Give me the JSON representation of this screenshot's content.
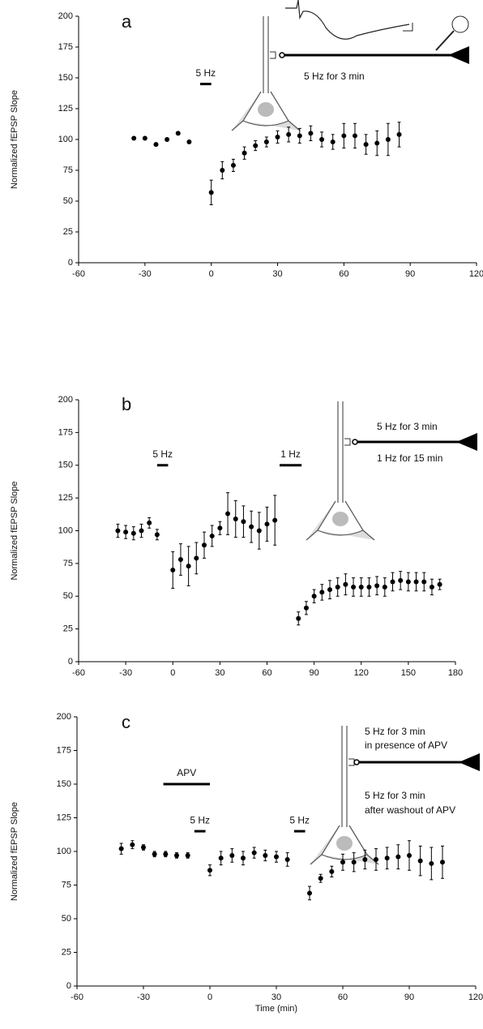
{
  "chart_data": [
    {
      "type": "scatter",
      "label": "a",
      "ylabel": "Normalized fEPSP Slope",
      "color": "#000000",
      "xlim": [
        -60,
        120
      ],
      "xticks": [
        -60,
        -30,
        0,
        30,
        60,
        90,
        120
      ],
      "ylim": [
        0,
        200
      ],
      "yticks": [
        0,
        25,
        50,
        75,
        100,
        125,
        150,
        175,
        200
      ],
      "x": [
        -35,
        -30,
        -25,
        -20,
        -15,
        -10,
        0,
        5,
        10,
        15,
        20,
        25,
        30,
        35,
        40,
        45,
        50,
        55,
        60,
        65,
        70,
        75,
        80,
        85
      ],
      "values": [
        101,
        101,
        96,
        100,
        105,
        98,
        57,
        75,
        79,
        89,
        95,
        98,
        102,
        104,
        103,
        105,
        100,
        98,
        103,
        103,
        96,
        97,
        100,
        104
      ],
      "errors": [
        null,
        null,
        null,
        null,
        null,
        null,
        10,
        7,
        5,
        5,
        4,
        4,
        5,
        6,
        6,
        6,
        6,
        6,
        10,
        10,
        8,
        10,
        13,
        10
      ],
      "bars": [
        {
          "label": "5 Hz",
          "x": [
            -5,
            0
          ],
          "y": 145
        }
      ],
      "annotations": [
        "5 Hz for 3 min"
      ]
    },
    {
      "type": "scatter",
      "label": "b",
      "ylabel": "Normalized fEPSP Slope",
      "color": "#000000",
      "xlim": [
        -60,
        180
      ],
      "xticks": [
        -60,
        -30,
        0,
        30,
        60,
        90,
        120,
        150,
        180
      ],
      "ylim": [
        0,
        200
      ],
      "yticks": [
        0,
        25,
        50,
        75,
        100,
        125,
        150,
        175,
        200
      ],
      "x": [
        -35,
        -30,
        -25,
        -20,
        -15,
        -10,
        0,
        5,
        10,
        15,
        20,
        25,
        30,
        35,
        40,
        45,
        50,
        55,
        60,
        65,
        80,
        85,
        90,
        95,
        100,
        105,
        110,
        115,
        120,
        125,
        130,
        135,
        140,
        145,
        150,
        155,
        160,
        165,
        170
      ],
      "values": [
        100,
        99,
        98,
        100,
        106,
        97,
        70,
        78,
        73,
        79,
        89,
        96,
        102,
        113,
        109,
        107,
        103,
        100,
        105,
        108,
        33,
        41,
        50,
        53,
        55,
        57,
        59,
        57,
        57,
        57,
        58,
        57,
        61,
        62,
        61,
        61,
        61,
        57,
        59
      ],
      "errors": [
        5,
        5,
        5,
        5,
        4,
        4,
        14,
        12,
        15,
        12,
        10,
        8,
        5,
        16,
        14,
        12,
        12,
        14,
        13,
        19,
        5,
        5,
        5,
        6,
        7,
        7,
        8,
        7,
        7,
        7,
        7,
        7,
        7,
        7,
        7,
        7,
        7,
        6,
        4
      ],
      "bars": [
        {
          "label": "5 Hz",
          "x": [
            -10,
            -3
          ],
          "y": 150
        },
        {
          "label": "1 Hz",
          "x": [
            68,
            82
          ],
          "y": 150
        }
      ],
      "annotations": [
        "5 Hz for 3 min",
        "1 Hz for 15 min"
      ]
    },
    {
      "type": "scatter",
      "label": "c",
      "ylabel": "Normalized fEPSP Slope",
      "xlabel": "Time (min)",
      "color": "#000000",
      "xlim": [
        -60,
        120
      ],
      "xticks": [
        -60,
        -30,
        0,
        30,
        60,
        90,
        120
      ],
      "ylim": [
        0,
        200
      ],
      "yticks": [
        0,
        25,
        50,
        75,
        100,
        125,
        150,
        175,
        200
      ],
      "x": [
        -40,
        -35,
        -30,
        -25,
        -20,
        -15,
        -10,
        0,
        5,
        10,
        15,
        20,
        25,
        30,
        35,
        45,
        50,
        55,
        60,
        65,
        70,
        75,
        80,
        85,
        90,
        95,
        100,
        105
      ],
      "values": [
        102,
        105,
        103,
        98,
        98,
        97,
        97,
        86,
        95,
        97,
        95,
        99,
        97,
        96,
        94,
        69,
        80,
        85,
        92,
        92,
        94,
        94,
        95,
        96,
        97,
        93,
        91,
        92
      ],
      "errors": [
        4,
        3,
        2,
        2,
        2,
        2,
        2,
        4,
        5,
        5,
        5,
        4,
        4,
        4,
        5,
        5,
        3,
        4,
        6,
        7,
        7,
        8,
        8,
        9,
        11,
        11,
        12,
        12
      ],
      "bars": [
        {
          "label": "APV",
          "x": [
            -21,
            0
          ],
          "y": 150
        },
        {
          "label": "5 Hz",
          "x": [
            -7,
            -2
          ],
          "y": 115
        },
        {
          "label": "5 Hz",
          "x": [
            38,
            43
          ],
          "y": 115
        }
      ],
      "annotations": [
        "5 Hz for 3 min",
        "in presence of APV",
        "5 Hz for 3 min",
        "after washout of APV"
      ]
    }
  ]
}
